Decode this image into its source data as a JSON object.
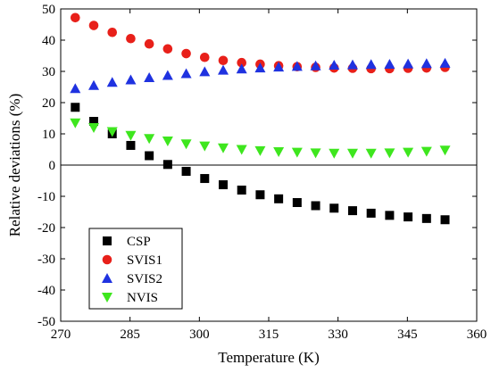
{
  "chart_data": {
    "type": "scatter",
    "xlabel": "Temperature (K)",
    "ylabel": "Relative deviations (%)",
    "xlim": [
      270,
      360
    ],
    "ylim": [
      -50,
      50
    ],
    "xticks": [
      270,
      285,
      300,
      315,
      330,
      345,
      360
    ],
    "yticks": [
      -50,
      -40,
      -30,
      -20,
      -10,
      0,
      10,
      20,
      30,
      40,
      50
    ],
    "zero_line": true,
    "grid": false,
    "legend_position": "bottom-left",
    "x": [
      273.15,
      277.15,
      281.15,
      285.15,
      289.15,
      293.15,
      297.15,
      301.15,
      305.15,
      309.15,
      313.15,
      317.15,
      321.15,
      325.15,
      329.15,
      333.15,
      337.15,
      341.15,
      345.15,
      349.15,
      353.15
    ],
    "series": [
      {
        "name": "CSP",
        "marker": "square",
        "color": "#000000",
        "values": [
          18.5,
          14.0,
          10.0,
          6.3,
          3.0,
          0.2,
          -2.0,
          -4.3,
          -6.3,
          -8.0,
          -9.5,
          -10.8,
          -12.0,
          -13.0,
          -13.8,
          -14.6,
          -15.4,
          -16.1,
          -16.6,
          -17.1,
          -17.5
        ]
      },
      {
        "name": "SVIS1",
        "marker": "circle",
        "color": "#e8201a",
        "values": [
          47.2,
          44.7,
          42.5,
          40.5,
          38.8,
          37.2,
          35.7,
          34.5,
          33.5,
          32.8,
          32.3,
          31.8,
          31.5,
          31.3,
          31.1,
          31.0,
          30.9,
          30.9,
          31.0,
          31.1,
          31.3
        ]
      },
      {
        "name": "SVIS2",
        "marker": "triangle-up",
        "color": "#1f32e0",
        "values": [
          24.5,
          25.5,
          26.5,
          27.3,
          28.0,
          28.7,
          29.3,
          29.9,
          30.4,
          30.8,
          31.1,
          31.4,
          31.6,
          31.8,
          32.0,
          32.1,
          32.2,
          32.3,
          32.4,
          32.5,
          32.6
        ]
      },
      {
        "name": "NVIS",
        "marker": "triangle-down",
        "color": "#3ee61e",
        "values": [
          13.5,
          12.0,
          10.7,
          9.5,
          8.5,
          7.7,
          6.8,
          6.1,
          5.5,
          5.0,
          4.6,
          4.3,
          4.1,
          3.9,
          3.8,
          3.8,
          3.8,
          3.9,
          4.1,
          4.4,
          4.8
        ]
      }
    ]
  }
}
